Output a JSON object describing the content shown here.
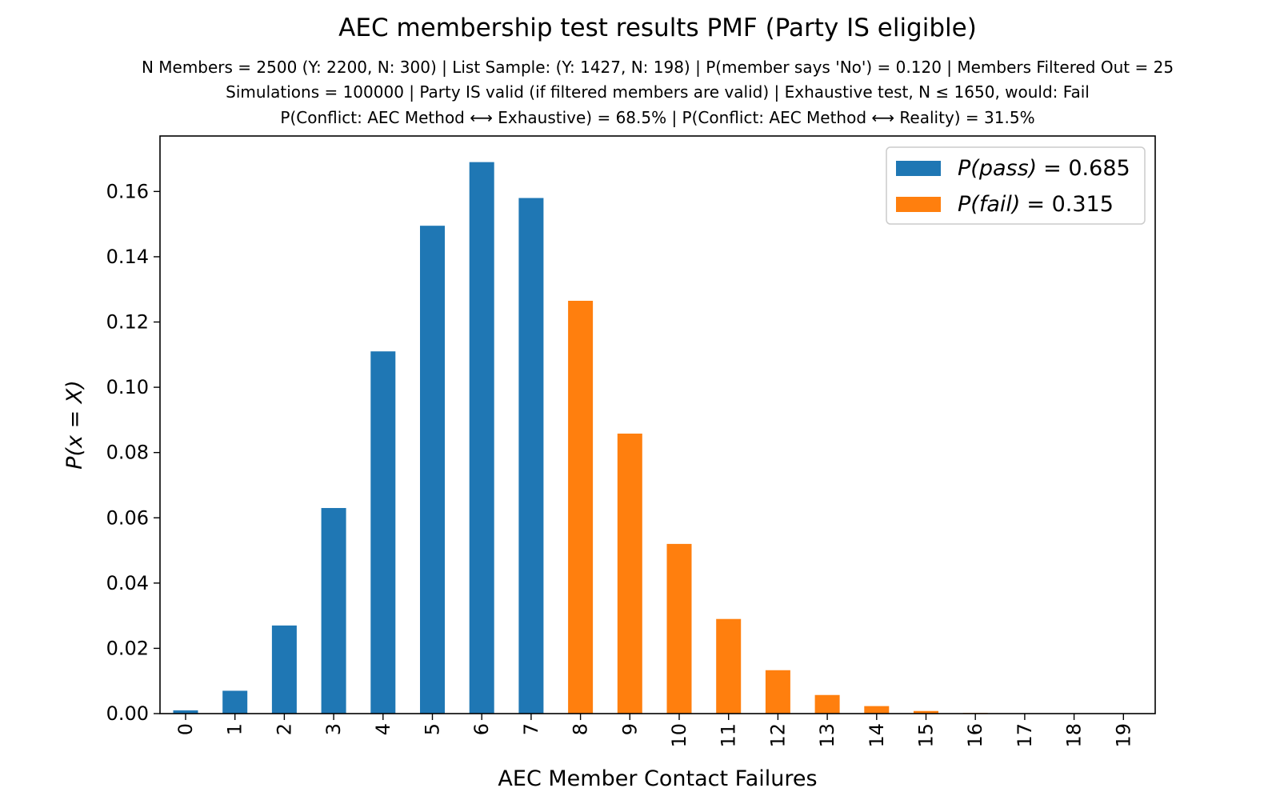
{
  "chart_data": {
    "type": "bar",
    "title": "AEC membership test results PMF (Party IS eligible)",
    "subtitle_lines": [
      "N Members = 2500 (Y: 2200, N: 300) | List Sample: (Y: 1427, N: 198) | P(member says 'No') = 0.120 | Members Filtered Out = 25",
      "Simulations = 100000 | Party IS valid (if filtered members are valid) | Exhaustive test, N ≤ 1650, would: Fail",
      "P(Conflict: AEC Method ⟷ Exhaustive) = 68.5% | P(Conflict: AEC Method ⟷ Reality) = 31.5%"
    ],
    "xlabel": "AEC Member Contact Failures",
    "ylabel": "P(x = X)",
    "ylim": [
      0,
      0.177
    ],
    "yticks": [
      0.0,
      0.02,
      0.04,
      0.06,
      0.08,
      0.1,
      0.12,
      0.14,
      0.16
    ],
    "ytick_labels": [
      "0.00",
      "0.02",
      "0.04",
      "0.06",
      "0.08",
      "0.10",
      "0.12",
      "0.14",
      "0.16"
    ],
    "categories": [
      "0",
      "1",
      "2",
      "3",
      "4",
      "5",
      "6",
      "7",
      "8",
      "9",
      "10",
      "11",
      "12",
      "13",
      "14",
      "15",
      "16",
      "17",
      "18",
      "19"
    ],
    "values": [
      0.001,
      0.007,
      0.027,
      0.063,
      0.111,
      0.1495,
      0.169,
      0.158,
      0.1265,
      0.0858,
      0.052,
      0.029,
      0.0133,
      0.0057,
      0.0023,
      0.0008,
      0.0002,
      0.0001,
      3e-05,
      1e-05
    ],
    "bar_groups": [
      "pass",
      "pass",
      "pass",
      "pass",
      "pass",
      "pass",
      "pass",
      "pass",
      "fail",
      "fail",
      "fail",
      "fail",
      "fail",
      "fail",
      "fail",
      "fail",
      "fail",
      "fail",
      "fail",
      "fail"
    ],
    "legend": {
      "placement": "top-right",
      "entries": [
        {
          "key": "pass",
          "label_symbol": "P(pass)",
          "label_value": "= 0.685",
          "color": "#1f77b4"
        },
        {
          "key": "fail",
          "label_symbol": "P(fail)",
          "label_value": "= 0.315",
          "color": "#ff7f0e"
        }
      ]
    },
    "grid": false
  }
}
